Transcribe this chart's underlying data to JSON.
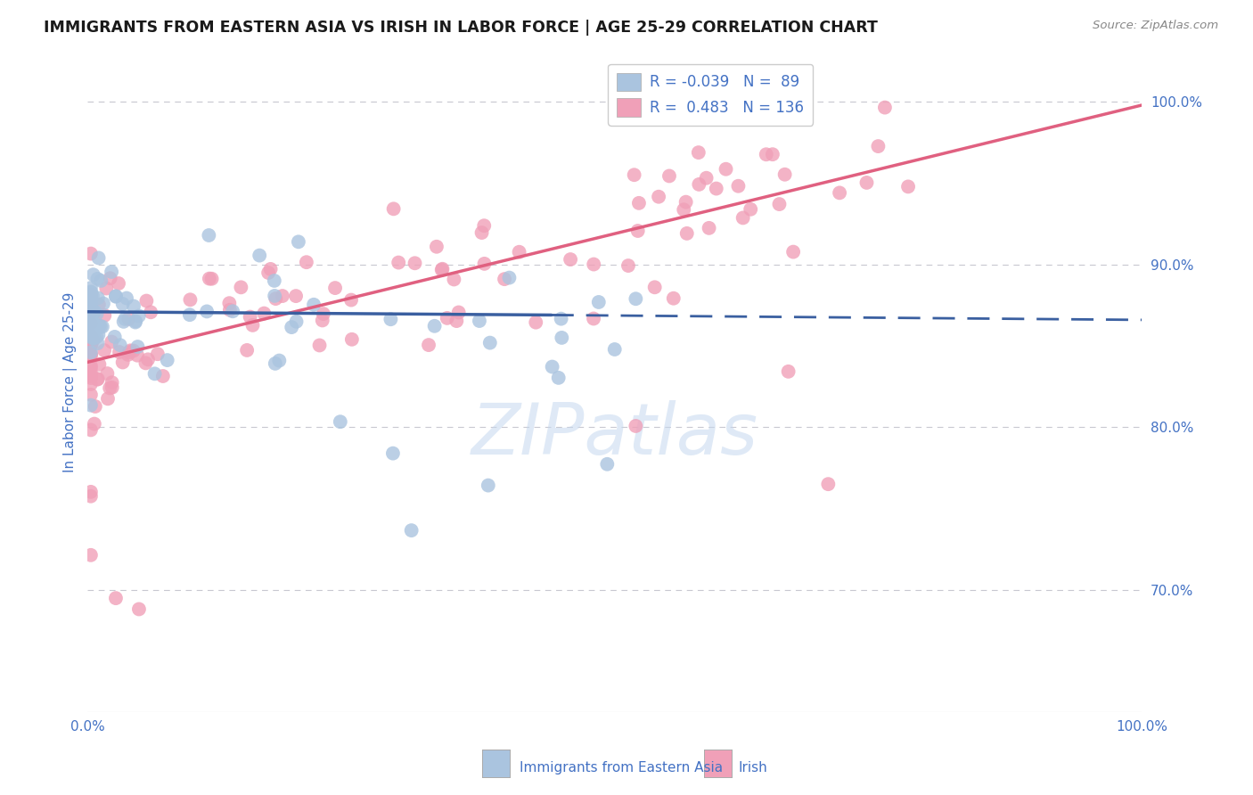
{
  "title": "IMMIGRANTS FROM EASTERN ASIA VS IRISH IN LABOR FORCE | AGE 25-29 CORRELATION CHART",
  "source": "Source: ZipAtlas.com",
  "ylabel": "In Labor Force | Age 25-29",
  "right_ytick_labels": [
    "100.0%",
    "90.0%",
    "80.0%",
    "70.0%"
  ],
  "right_ytick_values": [
    1.0,
    0.9,
    0.8,
    0.7
  ],
  "xlim": [
    0.0,
    1.0
  ],
  "ylim": [
    0.625,
    1.03
  ],
  "blue_color": "#aac4df",
  "pink_color": "#f0a0b8",
  "blue_line_color": "#3a5fa0",
  "pink_line_color": "#e06080",
  "title_color": "#1a1a1a",
  "axis_label_color": "#4472c4",
  "grid_color": "#c8c8d0",
  "blue_R": -0.039,
  "blue_N": 89,
  "pink_R": 0.483,
  "pink_N": 136,
  "legend_labels": [
    "Immigrants from Eastern Asia",
    "Irish"
  ],
  "watermark": "ZIPatlas",
  "background_color": "#ffffff"
}
